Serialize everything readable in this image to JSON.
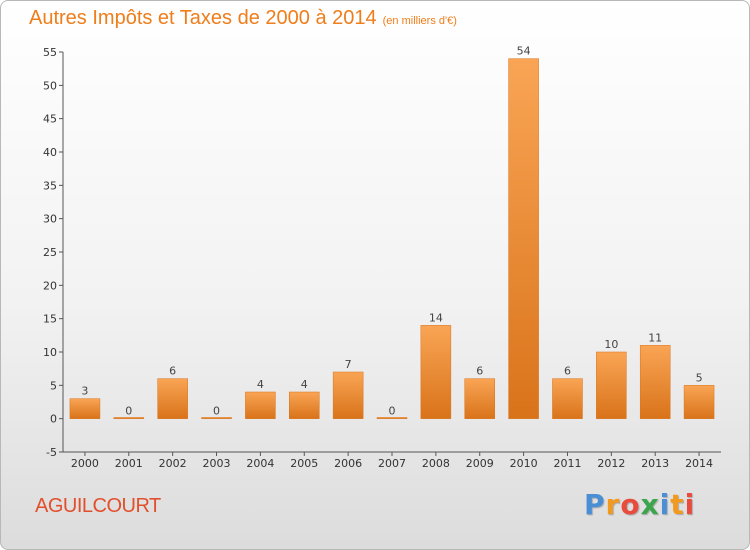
{
  "chart_data": {
    "type": "bar",
    "title": "Autres Impôts et Taxes de 2000 à 2014",
    "subtitle": "(en milliers d'€)",
    "xlabel": "",
    "ylabel": "",
    "categories": [
      "2000",
      "2001",
      "2002",
      "2003",
      "2004",
      "2005",
      "2006",
      "2007",
      "2008",
      "2009",
      "2010",
      "2011",
      "2012",
      "2013",
      "2014"
    ],
    "values": [
      3,
      0,
      6,
      0,
      4,
      4,
      7,
      0,
      14,
      6,
      54,
      6,
      10,
      11,
      5
    ],
    "value_labels": [
      "3",
      "0",
      "6",
      "0",
      "4",
      "4",
      "7",
      "0",
      "14",
      "6",
      "54",
      "6",
      "10",
      "11",
      "5"
    ],
    "ylim": [
      -5,
      55
    ],
    "yticks": [
      -5,
      0,
      5,
      10,
      15,
      20,
      25,
      30,
      35,
      40,
      45,
      50,
      55
    ],
    "grid": false,
    "legend": "none",
    "colors": {
      "bar_light": "#f9a555",
      "bar_dark": "#d9731a",
      "title": "#ef7d1a"
    }
  },
  "commune": {
    "name": "AGUILCOURT"
  },
  "brand": {
    "letters": [
      "P",
      "r",
      "o",
      "x",
      "i",
      "t",
      "i"
    ],
    "colors": [
      "#4a8fd6",
      "#f29a1f",
      "#e94b3c",
      "#3aa54a",
      "#4a8fd6",
      "#f29a1f",
      "#e94b3c"
    ]
  }
}
